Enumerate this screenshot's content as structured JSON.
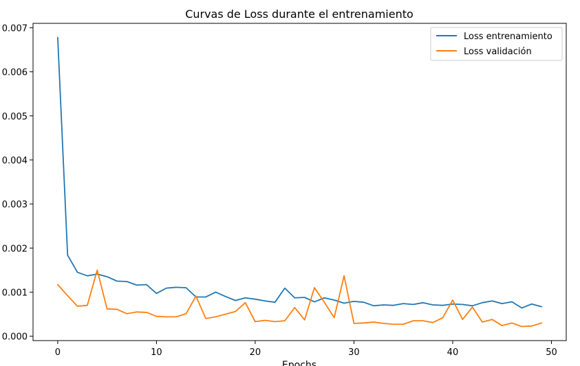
{
  "chart_data": {
    "type": "line",
    "title": "Curvas de Loss durante el entrenamiento",
    "xlabel": "Epochs",
    "ylabel": "",
    "xlim": [
      -2.5,
      51.5
    ],
    "ylim": [
      -0.0001,
      0.0071
    ],
    "x_ticks": [
      0,
      10,
      20,
      30,
      40,
      50
    ],
    "y_ticks": [
      0.0,
      0.001,
      0.002,
      0.003,
      0.004,
      0.005,
      0.006,
      0.007
    ],
    "y_tick_labels": [
      "0.000",
      "0.001",
      "0.002",
      "0.003",
      "0.004",
      "0.005",
      "0.006",
      "0.007"
    ],
    "grid": false,
    "legend_position": "top-right",
    "x": [
      0,
      1,
      2,
      3,
      4,
      5,
      6,
      7,
      8,
      9,
      10,
      11,
      12,
      13,
      14,
      15,
      16,
      17,
      18,
      19,
      20,
      21,
      22,
      23,
      24,
      25,
      26,
      27,
      28,
      29,
      30,
      31,
      32,
      33,
      34,
      35,
      36,
      37,
      38,
      39,
      40,
      41,
      42,
      43,
      44,
      45,
      46,
      47,
      48,
      49
    ],
    "series": [
      {
        "name": "Loss entrenamiento",
        "color": "#1f77b4",
        "values": [
          0.00678,
          0.00184,
          0.00145,
          0.00137,
          0.00141,
          0.00135,
          0.00125,
          0.00124,
          0.00116,
          0.00117,
          0.00097,
          0.00109,
          0.00111,
          0.0011,
          0.00089,
          0.00089,
          0.001,
          0.0009,
          0.00081,
          0.00087,
          0.00084,
          0.0008,
          0.00077,
          0.00109,
          0.00087,
          0.00088,
          0.00078,
          0.00087,
          0.00082,
          0.00075,
          0.00079,
          0.00077,
          0.00069,
          0.00071,
          0.0007,
          0.00074,
          0.00072,
          0.00076,
          0.00071,
          0.0007,
          0.00073,
          0.00072,
          0.00069,
          0.00076,
          0.0008,
          0.00074,
          0.00078,
          0.00064,
          0.00073,
          0.00067
        ]
      },
      {
        "name": "Loss validación",
        "color": "#ff7f0e",
        "values": [
          0.00117,
          0.00092,
          0.00068,
          0.0007,
          0.0015,
          0.00062,
          0.00061,
          0.00051,
          0.00055,
          0.00054,
          0.00045,
          0.00044,
          0.00044,
          0.00051,
          0.00091,
          0.0004,
          0.00044,
          0.0005,
          0.00056,
          0.00076,
          0.00033,
          0.00036,
          0.00033,
          0.00035,
          0.00065,
          0.00037,
          0.0011,
          0.00077,
          0.00042,
          0.00137,
          0.00029,
          0.0003,
          0.00032,
          0.00029,
          0.00027,
          0.00027,
          0.00035,
          0.00035,
          0.00031,
          0.00042,
          0.00082,
          0.00038,
          0.00066,
          0.00032,
          0.00038,
          0.00024,
          0.0003,
          0.00022,
          0.00023,
          0.0003
        ]
      }
    ]
  }
}
